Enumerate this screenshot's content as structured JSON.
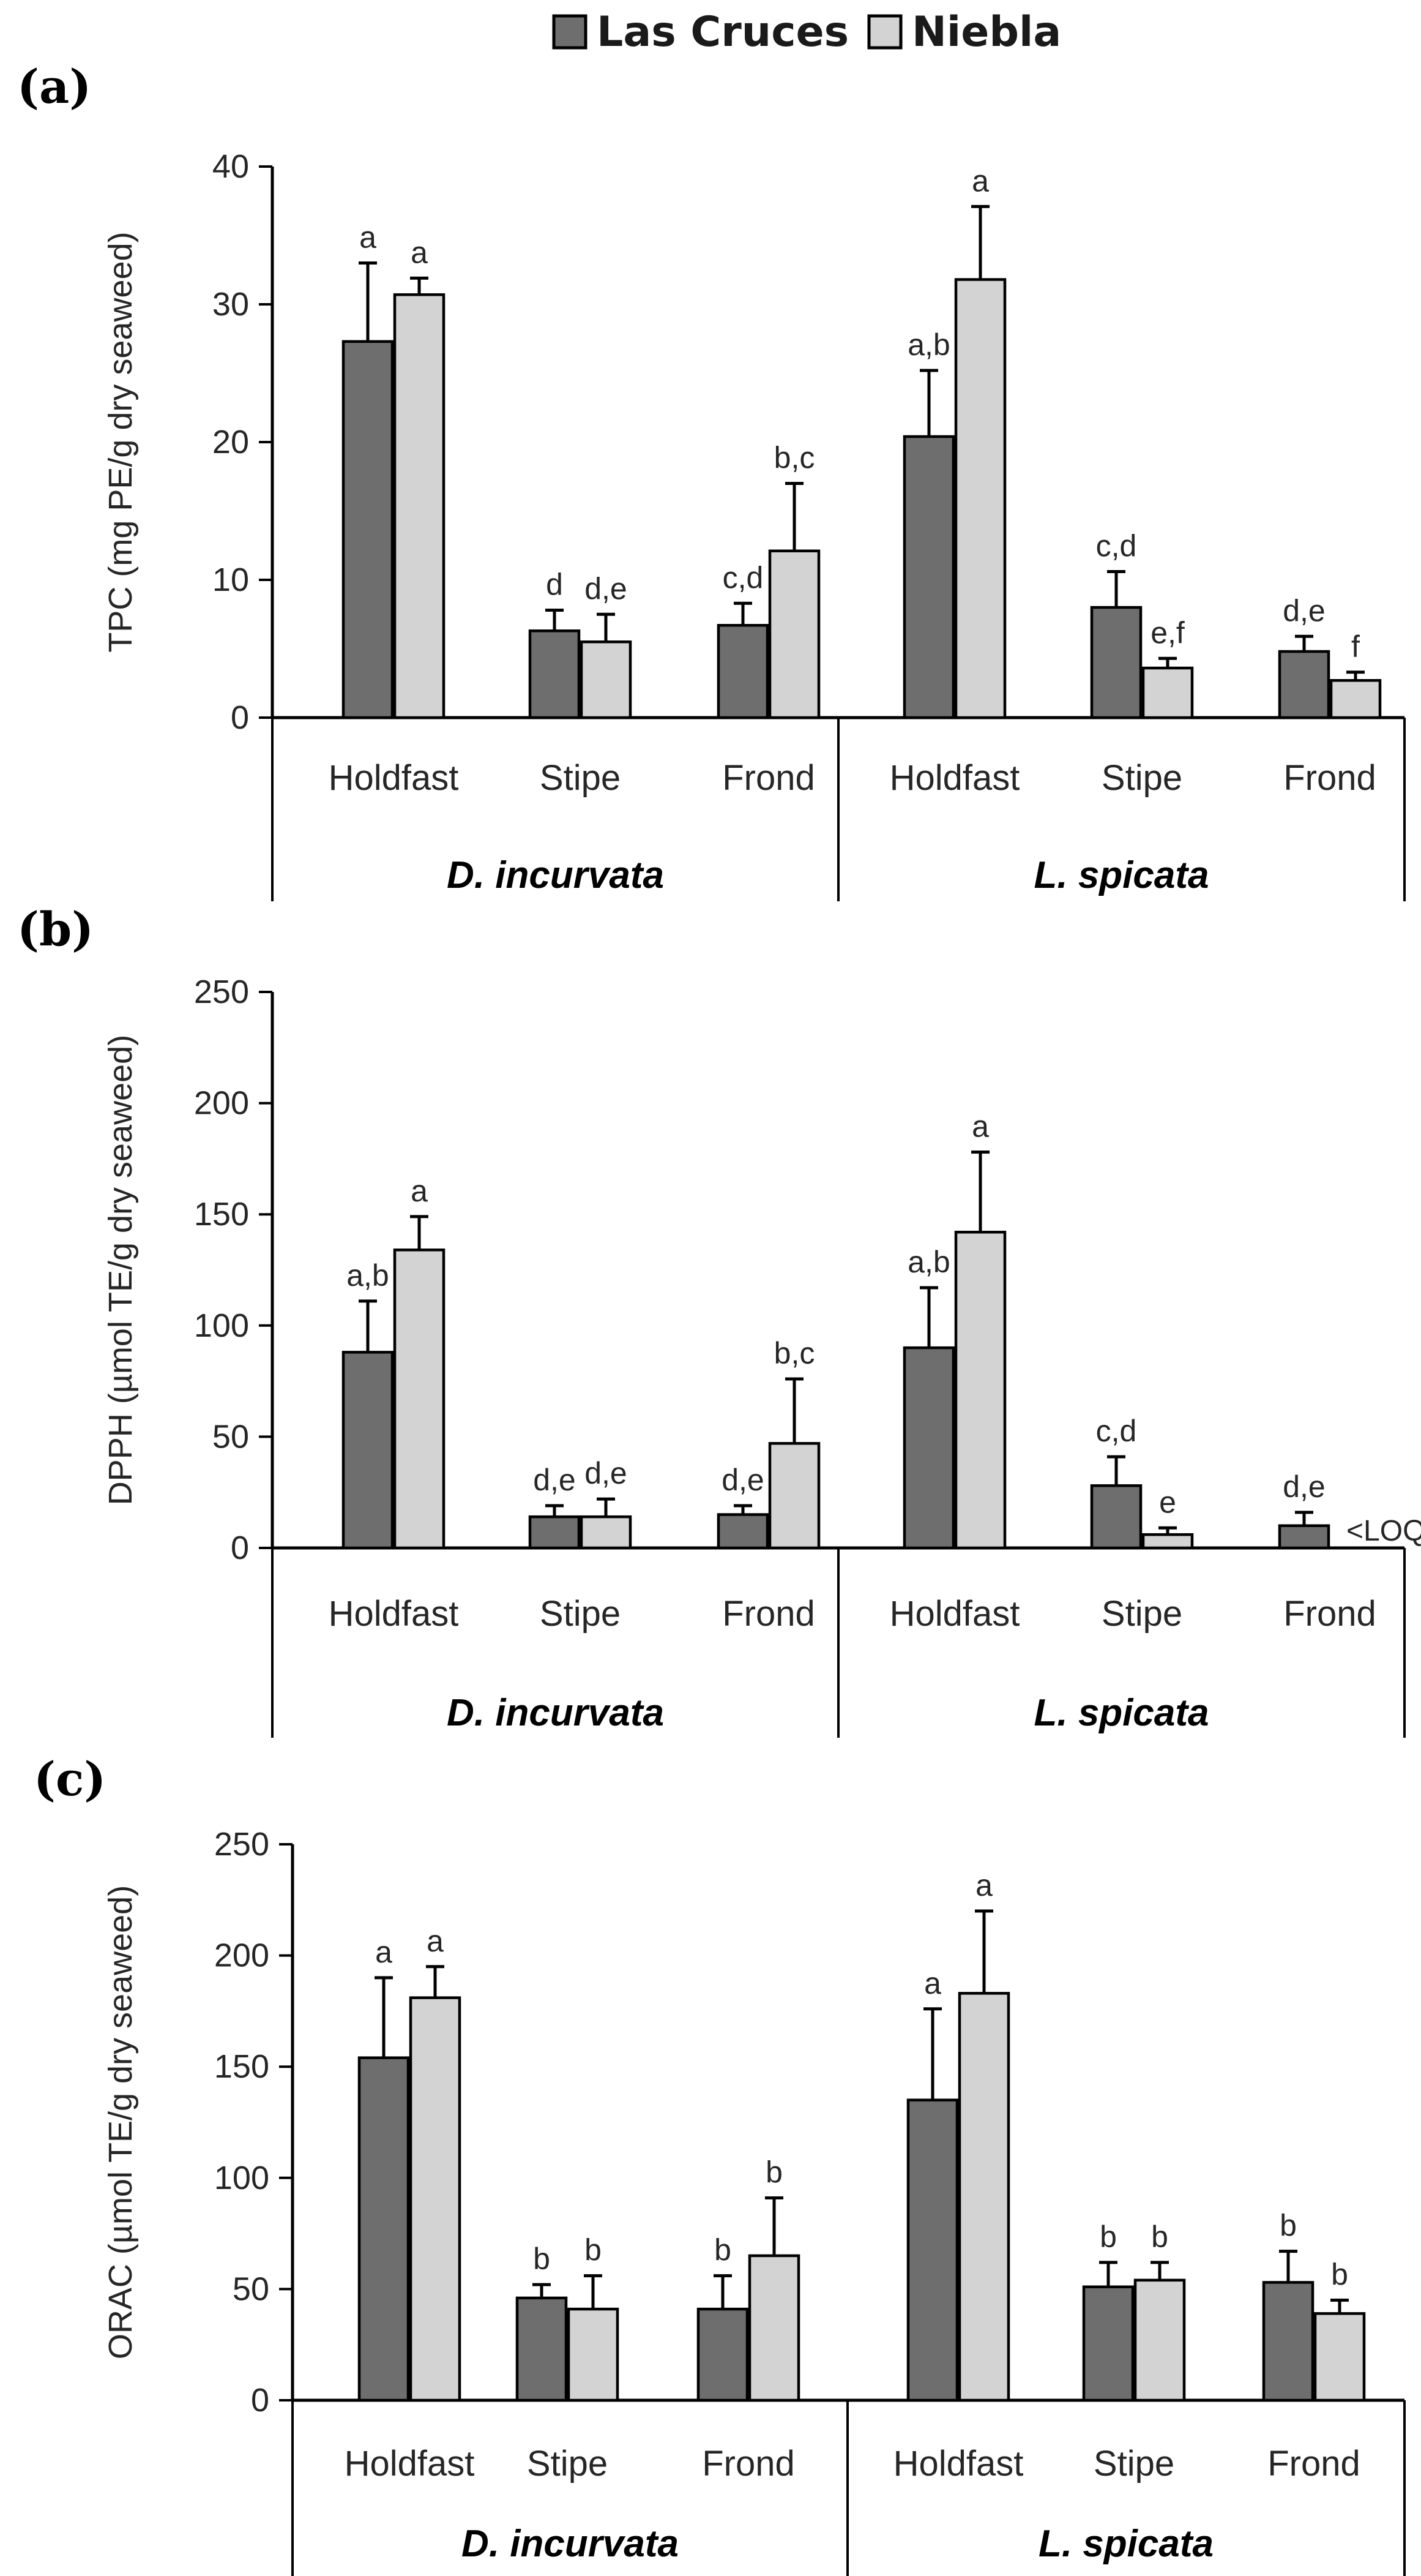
{
  "legend": {
    "series": [
      {
        "name": "Las Cruces",
        "color": "#6e6e6e"
      },
      {
        "name": "Niebla",
        "color": "#d3d3d3"
      }
    ]
  },
  "chart_data": [
    {
      "type": "bar",
      "panel_label": "(a)",
      "ylabel": "TPC (mg PE/g dry seaweed)",
      "ylim": [
        0,
        40
      ],
      "yticks": [
        0,
        10,
        20,
        30,
        40
      ],
      "categories": [
        "Holdfast",
        "Stipe",
        "Frond",
        "Holdfast",
        "Stipe",
        "Frond"
      ],
      "groups": [
        {
          "label": "D. incurvata",
          "categories": [
            "Holdfast",
            "Stipe",
            "Frond"
          ]
        },
        {
          "label": "L. spicata",
          "categories": [
            "Holdfast",
            "Stipe",
            "Frond"
          ]
        }
      ],
      "series": [
        {
          "name": "Las Cruces",
          "values": [
            27.3,
            6.3,
            6.7,
            20.4,
            8.0,
            4.8
          ],
          "errors": [
            5.7,
            1.5,
            1.6,
            4.8,
            2.6,
            1.1
          ],
          "labels": [
            "a",
            "d",
            "c,d",
            "a,b",
            "c,d",
            "d,e"
          ]
        },
        {
          "name": "Niebla",
          "values": [
            30.7,
            5.5,
            12.1,
            31.8,
            3.6,
            2.7
          ],
          "errors": [
            1.2,
            2.0,
            4.9,
            5.3,
            0.7,
            0.6
          ],
          "labels": [
            "a",
            "d,e",
            "b,c",
            "a",
            "e,f",
            "f"
          ]
        }
      ],
      "grid": false
    },
    {
      "type": "bar",
      "panel_label": "(b)",
      "ylabel": "DPPH (µmol TE/g dry seaweed)",
      "ylim": [
        0,
        250
      ],
      "yticks": [
        0,
        50,
        100,
        150,
        200,
        250
      ],
      "categories": [
        "Holdfast",
        "Stipe",
        "Frond",
        "Holdfast",
        "Stipe",
        "Frond"
      ],
      "groups": [
        {
          "label": "D. incurvata",
          "categories": [
            "Holdfast",
            "Stipe",
            "Frond"
          ]
        },
        {
          "label": "L. spicata",
          "categories": [
            "Holdfast",
            "Stipe",
            "Frond"
          ]
        }
      ],
      "series": [
        {
          "name": "Las Cruces",
          "values": [
            88,
            14,
            15,
            90,
            28,
            10
          ],
          "errors": [
            23,
            5,
            4,
            27,
            13,
            6
          ],
          "labels": [
            "a,b",
            "d,e",
            "d,e",
            "a,b",
            "c,d",
            "d,e"
          ]
        },
        {
          "name": "Niebla",
          "values": [
            134,
            14,
            47,
            142,
            6,
            null
          ],
          "errors": [
            15,
            8,
            29,
            36,
            3,
            null
          ],
          "labels": [
            "a",
            "d,e",
            "b,c",
            "a",
            "e",
            "<LOQ"
          ]
        }
      ],
      "grid": false
    },
    {
      "type": "bar",
      "panel_label": "(c)",
      "ylabel": "ORAC (µmol TE/g dry seaweed)",
      "ylim": [
        0,
        250
      ],
      "yticks": [
        0,
        50,
        100,
        150,
        200,
        250
      ],
      "categories": [
        "Holdfast",
        "Stipe",
        "Frond",
        "Holdfast",
        "Stipe",
        "Frond"
      ],
      "groups": [
        {
          "label": "D. incurvata",
          "categories": [
            "Holdfast",
            "Stipe",
            "Frond"
          ]
        },
        {
          "label": "L. spicata",
          "categories": [
            "Holdfast",
            "Stipe",
            "Frond"
          ]
        }
      ],
      "series": [
        {
          "name": "Las Cruces",
          "values": [
            154,
            46,
            41,
            135,
            51,
            53
          ],
          "errors": [
            36,
            6,
            15,
            41,
            11,
            14
          ],
          "labels": [
            "a",
            "b",
            "b",
            "a",
            "b",
            "b"
          ]
        },
        {
          "name": "Niebla",
          "values": [
            181,
            41,
            65,
            183,
            54,
            39
          ],
          "errors": [
            14,
            15,
            26,
            37,
            8,
            6
          ],
          "labels": [
            "a",
            "b",
            "b",
            "a",
            "b",
            "b"
          ]
        }
      ],
      "grid": false
    }
  ]
}
